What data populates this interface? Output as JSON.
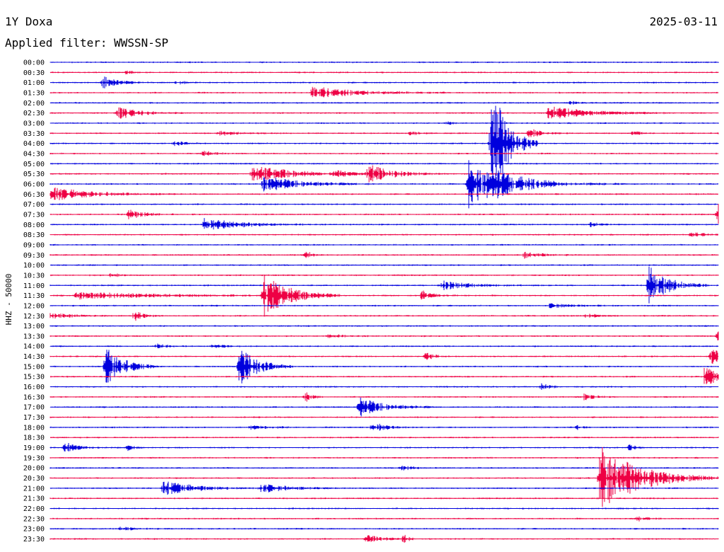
{
  "header": {
    "station": "1Y Doxa",
    "date": "2025-03-11",
    "filter": "Applied filter: WWSSN-SP"
  },
  "channel_label": "HHZ - 50000",
  "colors": {
    "blue": "#0000dd",
    "red": "#ee0044",
    "text": "#000000",
    "background": "#ffffff"
  },
  "chart_data": {
    "type": "line",
    "ylabel": "HHZ - 50000",
    "lines": [
      "00:00",
      "00:30",
      "01:00",
      "01:30",
      "02:00",
      "02:30",
      "03:00",
      "03:30",
      "04:00",
      "04:30",
      "05:00",
      "05:30",
      "06:00",
      "06:30",
      "07:00",
      "07:30",
      "08:00",
      "08:30",
      "09:00",
      "09:30",
      "10:00",
      "10:30",
      "11:00",
      "11:30",
      "12:00",
      "12:30",
      "13:00",
      "13:30",
      "14:00",
      "14:30",
      "15:00",
      "15:30",
      "16:00",
      "16:30",
      "17:00",
      "17:30",
      "18:00",
      "18:30",
      "19:00",
      "19:30",
      "20:00",
      "20:30",
      "21:00",
      "21:30",
      "22:00",
      "22:30",
      "23:00",
      "23:30"
    ],
    "line_colors": [
      "blue",
      "red"
    ],
    "line_duration_minutes": 30,
    "events": [
      {
        "line": "00:30",
        "minute": 3.4,
        "amp": 0.3,
        "dur": 0.6
      },
      {
        "line": "01:00",
        "minute": 2.4,
        "amp": 0.9,
        "dur": 1.2
      },
      {
        "line": "01:00",
        "minute": 5.7,
        "amp": 0.3,
        "dur": 0.8
      },
      {
        "line": "01:30",
        "minute": 11.8,
        "amp": 0.9,
        "dur": 4
      },
      {
        "line": "02:00",
        "minute": 23.4,
        "amp": 0.3,
        "dur": 0.6
      },
      {
        "line": "02:30",
        "minute": 3.0,
        "amp": 1.0,
        "dur": 2
      },
      {
        "line": "02:30",
        "minute": 22.4,
        "amp": 1.0,
        "dur": 3.5
      },
      {
        "line": "03:00",
        "minute": 17.8,
        "amp": 0.2,
        "dur": 0.6
      },
      {
        "line": "03:30",
        "minute": 7.6,
        "amp": 0.4,
        "dur": 1.4
      },
      {
        "line": "03:30",
        "minute": 16.2,
        "amp": 0.3,
        "dur": 0.8
      },
      {
        "line": "03:30",
        "minute": 21.5,
        "amp": 0.8,
        "dur": 1
      },
      {
        "line": "03:30",
        "minute": 26.2,
        "amp": 0.4,
        "dur": 0.6
      },
      {
        "line": "04:00",
        "minute": 5.6,
        "amp": 0.4,
        "dur": 0.8
      },
      {
        "line": "04:00",
        "minute": 19.8,
        "amp": 10,
        "dur": 1.4
      },
      {
        "line": "04:30",
        "minute": 6.9,
        "amp": 0.5,
        "dur": 0.8
      },
      {
        "line": "05:30",
        "minute": 9.1,
        "amp": 1.3,
        "dur": 3.6
      },
      {
        "line": "05:30",
        "minute": 12.8,
        "amp": 0.4,
        "dur": 1.4
      },
      {
        "line": "05:30",
        "minute": 14.3,
        "amp": 1.4,
        "dur": 2.2
      },
      {
        "line": "06:00",
        "minute": 9.6,
        "amp": 1.2,
        "dur": 3.2
      },
      {
        "line": "06:00",
        "minute": 18.8,
        "amp": 4,
        "dur": 2.6
      },
      {
        "line": "06:00",
        "minute": 20.0,
        "amp": 1.0,
        "dur": 4
      },
      {
        "line": "06:30",
        "minute": 0.0,
        "amp": 1.1,
        "dur": 3.4
      },
      {
        "line": "07:30",
        "minute": 3.5,
        "amp": 0.8,
        "dur": 1.4
      },
      {
        "line": "07:30",
        "minute": 30.0,
        "amp": 1.6,
        "dur": 0.8
      },
      {
        "line": "08:00",
        "minute": 6.9,
        "amp": 1.0,
        "dur": 3.2
      },
      {
        "line": "08:00",
        "minute": 24.3,
        "amp": 0.4,
        "dur": 0.6
      },
      {
        "line": "08:30",
        "minute": 28.8,
        "amp": 0.3,
        "dur": 1.4
      },
      {
        "line": "09:30",
        "minute": 11.5,
        "amp": 0.5,
        "dur": 0.6
      },
      {
        "line": "09:30",
        "minute": 21.3,
        "amp": 0.5,
        "dur": 1.4
      },
      {
        "line": "10:30",
        "minute": 2.7,
        "amp": 0.3,
        "dur": 0.8
      },
      {
        "line": "11:00",
        "minute": 17.6,
        "amp": 0.7,
        "dur": 2.4
      },
      {
        "line": "11:00",
        "minute": 26.9,
        "amp": 2.9,
        "dur": 1.8
      },
      {
        "line": "11:30",
        "minute": 1.2,
        "amp": 0.5,
        "dur": 7
      },
      {
        "line": "11:30",
        "minute": 9.6,
        "amp": 3.0,
        "dur": 2.4
      },
      {
        "line": "11:30",
        "minute": 16.7,
        "amp": 0.8,
        "dur": 1
      },
      {
        "line": "12:00",
        "minute": 22.4,
        "amp": 0.3,
        "dur": 2
      },
      {
        "line": "12:30",
        "minute": 0.0,
        "amp": 0.4,
        "dur": 1.8
      },
      {
        "line": "12:30",
        "minute": 3.8,
        "amp": 0.7,
        "dur": 0.8
      },
      {
        "line": "12:30",
        "minute": 24.1,
        "amp": 0.3,
        "dur": 1
      },
      {
        "line": "13:30",
        "minute": 12.5,
        "amp": 0.3,
        "dur": 1.2
      },
      {
        "line": "13:30",
        "minute": 30.0,
        "amp": 0.7,
        "dur": 0.8
      },
      {
        "line": "14:00",
        "minute": 4.8,
        "amp": 0.3,
        "dur": 1
      },
      {
        "line": "14:00",
        "minute": 7.3,
        "amp": 0.3,
        "dur": 1
      },
      {
        "line": "14:30",
        "minute": 16.9,
        "amp": 0.7,
        "dur": 0.6
      },
      {
        "line": "14:30",
        "minute": 29.7,
        "amp": 1.4,
        "dur": 1.2
      },
      {
        "line": "15:00",
        "minute": 2.5,
        "amp": 3.0,
        "dur": 1.6
      },
      {
        "line": "15:00",
        "minute": 8.5,
        "amp": 3.2,
        "dur": 1.6
      },
      {
        "line": "15:30",
        "minute": 29.4,
        "amp": 1.6,
        "dur": 1.2
      },
      {
        "line": "16:00",
        "minute": 22.1,
        "amp": 0.6,
        "dur": 0.6
      },
      {
        "line": "16:30",
        "minute": 11.5,
        "amp": 0.7,
        "dur": 0.6
      },
      {
        "line": "16:30",
        "minute": 24.0,
        "amp": 0.5,
        "dur": 0.8
      },
      {
        "line": "17:00",
        "minute": 13.9,
        "amp": 1.4,
        "dur": 2.2
      },
      {
        "line": "18:00",
        "minute": 14.5,
        "amp": 1.0,
        "dur": 1
      },
      {
        "line": "18:00",
        "minute": 9.0,
        "amp": 0.3,
        "dur": 1.6
      },
      {
        "line": "18:00",
        "minute": 23.7,
        "amp": 0.4,
        "dur": 0.4
      },
      {
        "line": "19:00",
        "minute": 0.7,
        "amp": 0.8,
        "dur": 1
      },
      {
        "line": "19:00",
        "minute": 3.5,
        "amp": 0.4,
        "dur": 0.6
      },
      {
        "line": "19:00",
        "minute": 26.0,
        "amp": 0.5,
        "dur": 0.6
      },
      {
        "line": "20:00",
        "minute": 15.8,
        "amp": 0.3,
        "dur": 1.2
      },
      {
        "line": "20:30",
        "minute": 24.7,
        "amp": 5.0,
        "dur": 3.6
      },
      {
        "line": "21:00",
        "minute": 5.1,
        "amp": 1.0,
        "dur": 3
      },
      {
        "line": "21:00",
        "minute": 9.5,
        "amp": 0.7,
        "dur": 2.4
      },
      {
        "line": "22:30",
        "minute": 26.4,
        "amp": 0.5,
        "dur": 0.8
      },
      {
        "line": "23:00",
        "minute": 3.1,
        "amp": 0.3,
        "dur": 1.2
      },
      {
        "line": "23:30",
        "minute": 14.2,
        "amp": 0.5,
        "dur": 1.6
      },
      {
        "line": "23:30",
        "minute": 15.9,
        "amp": 0.6,
        "dur": 0.4
      }
    ]
  }
}
